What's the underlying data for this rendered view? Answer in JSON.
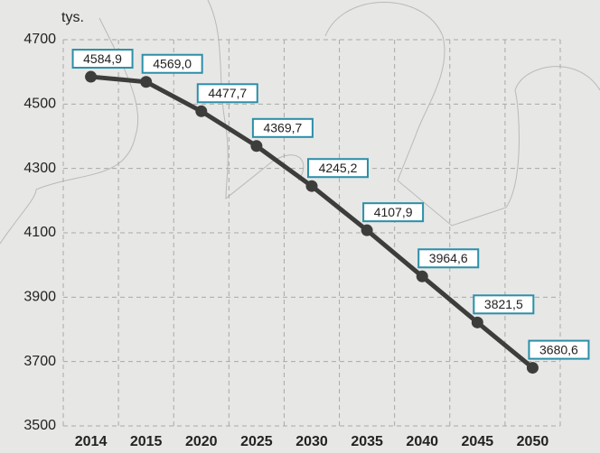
{
  "chart_data": {
    "type": "line",
    "y_label": "tys.",
    "categories": [
      "2014",
      "2015",
      "2020",
      "2025",
      "2030",
      "2035",
      "2040",
      "2045",
      "2050"
    ],
    "values": [
      4584.9,
      4569.0,
      4477.7,
      4369.7,
      4245.2,
      4107.9,
      3964.6,
      3821.5,
      3680.6
    ],
    "value_labels": [
      "4584,9",
      "4569,0",
      "4477,7",
      "4369,7",
      "4245,2",
      "4107,9",
      "3964,6",
      "3821,5",
      "3680,6"
    ],
    "color": "#3d3d3b",
    "label_border": "#2a8fa8",
    "ylim": [
      3500,
      4700
    ],
    "yticks": [
      3500,
      3700,
      3900,
      4100,
      4300,
      4500,
      4700
    ],
    "grid": true
  }
}
